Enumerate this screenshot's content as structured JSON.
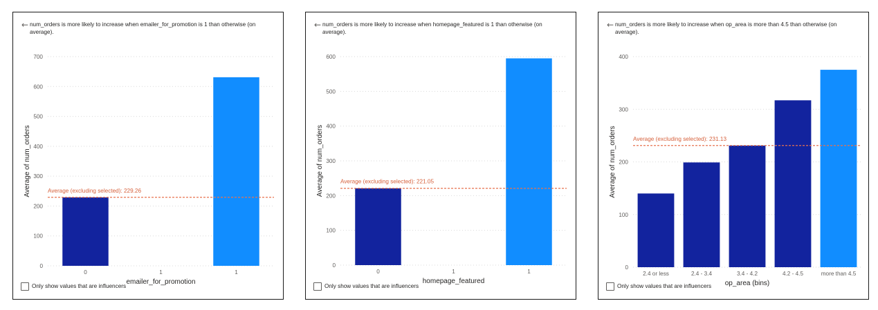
{
  "colors": {
    "bar_selected": "#118DFF",
    "bar_other": "#12239E",
    "average_line": "#E8724F",
    "average_text": "#D6603B",
    "grid": "#D9D9D9",
    "tick_text": "#605E5C"
  },
  "icons": {
    "back": "left-arrow-icon",
    "checkbox": "checkbox-icon"
  },
  "panels": [
    {
      "header": "num_orders is more likely to increase when emailer_for_promotion is 1 than otherwise (on average).",
      "checkbox_label": "Only show values that are influencers",
      "average_label": "Average (excluding selected): 229.26"
    },
    {
      "header": "num_orders is more likely to increase when homepage_featured is 1 than otherwise (on average).",
      "checkbox_label": "Only show values that are influencers",
      "average_label": "Average (excluding selected): 221.05"
    },
    {
      "header": "num_orders is more likely to increase when op_area is more than 4.5 than otherwise (on average).",
      "checkbox_label": "Only show values that are influencers",
      "average_label": "Average (excluding selected): 231.13"
    }
  ],
  "chart_data": [
    {
      "type": "bar",
      "categories": [
        "0",
        "1",
        "1"
      ],
      "values": [
        229,
        null,
        631
      ],
      "selected_index": 2,
      "average": 229.26,
      "xlabel": "emailer_for_promotion",
      "ylabel": "Average of num_orders",
      "ylim": [
        0,
        700
      ],
      "yticks": [
        0,
        100,
        200,
        300,
        400,
        500,
        600,
        700
      ],
      "grid": true
    },
    {
      "type": "bar",
      "categories": [
        "0",
        "1",
        "1"
      ],
      "values": [
        221,
        null,
        595
      ],
      "selected_index": 2,
      "average": 221.05,
      "xlabel": "homepage_featured",
      "ylabel": "Average of num_orders",
      "ylim": [
        0,
        600
      ],
      "yticks": [
        0,
        100,
        200,
        300,
        400,
        500,
        600
      ],
      "grid": true
    },
    {
      "type": "bar",
      "categories": [
        "2.4 or less",
        "2.4 - 3.4",
        "3.4 - 4.2",
        "4.2 - 4.5",
        "more than 4.5"
      ],
      "values": [
        140,
        199,
        231,
        317,
        375
      ],
      "selected_index": 4,
      "average": 231.13,
      "xlabel": "op_area (bins)",
      "ylabel": "Average of num_orders",
      "ylim": [
        0,
        400
      ],
      "yticks": [
        0,
        100,
        200,
        300,
        400
      ],
      "grid": true
    }
  ]
}
